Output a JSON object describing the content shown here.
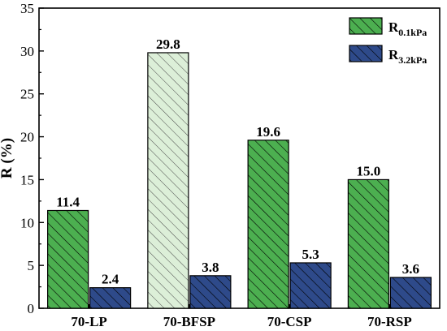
{
  "chart_data": {
    "type": "bar",
    "categories": [
      "70-LP",
      "70-BFSP",
      "70-CSP",
      "70-RSP"
    ],
    "series": [
      {
        "name": "R",
        "subscript": "0.1kPa",
        "color": "#4caf50",
        "values": [
          11.4,
          29.8,
          19.6,
          15.0
        ],
        "labels": [
          "11.4",
          "29.8",
          "19.6",
          "15.0"
        ]
      },
      {
        "name": "R",
        "subscript": "3.2kPa",
        "color": "#2e4a8a",
        "values": [
          2.4,
          3.8,
          5.3,
          3.6
        ],
        "labels": [
          "2.4",
          "3.8",
          "5.3",
          "3.6"
        ]
      }
    ],
    "highlight_color": "#dcefd8",
    "highlight_category": "70-BFSP",
    "ylabel": "R (%)",
    "xlabel": "",
    "ylim": [
      0,
      35
    ],
    "yticks": [
      0,
      5,
      10,
      15,
      20,
      25,
      30,
      35
    ],
    "grid": false,
    "legend_position": "top-right",
    "hatch": "diagonal"
  }
}
